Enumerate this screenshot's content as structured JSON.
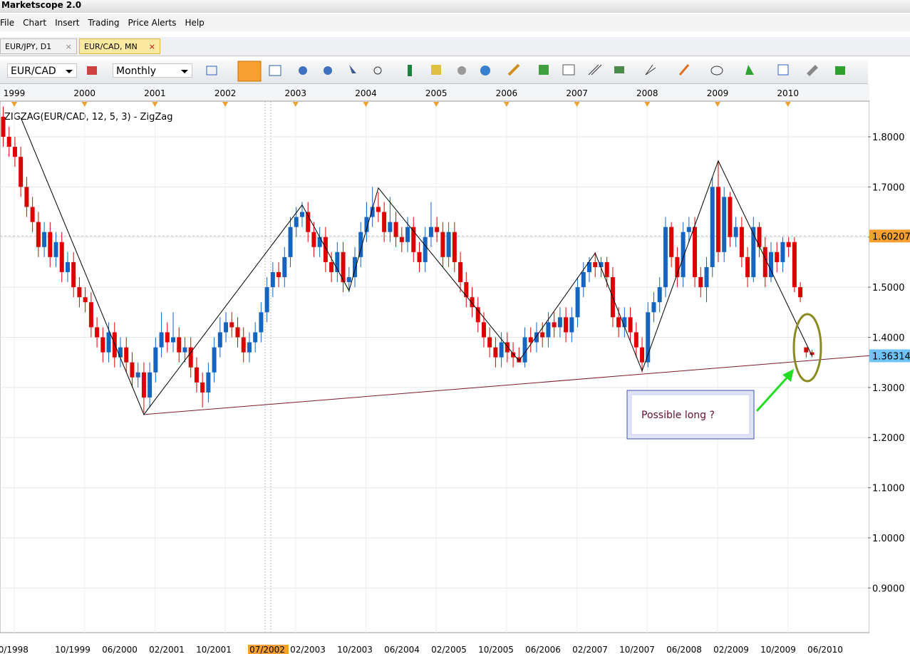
{
  "window": {
    "title": "Marketscope 2.0"
  },
  "menu": [
    "File",
    "Chart",
    "Insert",
    "Trading",
    "Price Alerts",
    "Help"
  ],
  "tabs": [
    "EUR/JPY, D1",
    "EUR/CAD, MN"
  ],
  "toolbar": {
    "symbol": "EUR/CAD",
    "period": "Monthly"
  },
  "chart_data": {
    "type": "candlestick",
    "indicator_label": "ZIGZAG(EUR/CAD, 12, 5, 3) - ZigZag",
    "up_color": "#1565c0",
    "down_color": "#dd0000",
    "ylim": [
      0.811,
      1.871
    ],
    "yticks": [
      {
        "value": 1.8,
        "label": "1.8000"
      },
      {
        "value": 1.7,
        "label": "1.7000"
      },
      {
        "value": 1.6,
        "label": "1.6000"
      },
      {
        "value": 1.5,
        "label": "1.5000"
      },
      {
        "value": 1.4,
        "label": "1.4000"
      },
      {
        "value": 1.3,
        "label": "1.3000"
      },
      {
        "value": 1.2,
        "label": "1.2000"
      },
      {
        "value": 1.1,
        "label": "1.1000"
      },
      {
        "value": 1.0,
        "label": "1.0000"
      },
      {
        "value": 0.9,
        "label": "0.9000"
      }
    ],
    "years": [
      "1999",
      "2000",
      "2001",
      "2002",
      "2003",
      "2004",
      "2005",
      "2006",
      "2007",
      "2008",
      "2009",
      "2010"
    ],
    "dates": [
      "10/1998",
      "10/1999",
      "06/2000",
      "02/2001",
      "10/2001",
      "07/2002",
      "02/2003",
      "10/2003",
      "06/2004",
      "02/2005",
      "10/2005",
      "06/2006",
      "02/2007",
      "10/2007",
      "06/2008",
      "02/2009",
      "10/2009",
      "06/2010"
    ],
    "grid": true,
    "candles": [
      [
        1.84,
        1.86,
        1.78,
        1.8
      ],
      [
        1.8,
        1.82,
        1.76,
        1.78
      ],
      [
        1.78,
        1.8,
        1.74,
        1.76
      ],
      [
        1.76,
        1.78,
        1.68,
        1.7
      ],
      [
        1.7,
        1.72,
        1.64,
        1.66
      ],
      [
        1.66,
        1.68,
        1.61,
        1.63
      ],
      [
        1.63,
        1.65,
        1.56,
        1.58
      ],
      [
        1.58,
        1.63,
        1.56,
        1.61
      ],
      [
        1.61,
        1.63,
        1.54,
        1.56
      ],
      [
        1.56,
        1.61,
        1.54,
        1.59
      ],
      [
        1.59,
        1.61,
        1.51,
        1.53
      ],
      [
        1.53,
        1.57,
        1.51,
        1.55
      ],
      [
        1.55,
        1.57,
        1.48,
        1.5
      ],
      [
        1.5,
        1.52,
        1.46,
        1.48
      ],
      [
        1.48,
        1.5,
        1.45,
        1.47
      ],
      [
        1.47,
        1.49,
        1.4,
        1.42
      ],
      [
        1.42,
        1.44,
        1.38,
        1.4
      ],
      [
        1.4,
        1.42,
        1.35,
        1.37
      ],
      [
        1.37,
        1.43,
        1.35,
        1.41
      ],
      [
        1.41,
        1.43,
        1.34,
        1.36
      ],
      [
        1.36,
        1.4,
        1.34,
        1.38
      ],
      [
        1.38,
        1.4,
        1.33,
        1.35
      ],
      [
        1.35,
        1.37,
        1.3,
        1.32
      ],
      [
        1.32,
        1.35,
        1.3,
        1.33
      ],
      [
        1.33,
        1.35,
        1.25,
        1.28
      ],
      [
        1.28,
        1.35,
        1.26,
        1.33
      ],
      [
        1.33,
        1.4,
        1.31,
        1.38
      ],
      [
        1.38,
        1.45,
        1.36,
        1.41
      ],
      [
        1.41,
        1.43,
        1.37,
        1.39
      ],
      [
        1.39,
        1.45,
        1.37,
        1.4
      ],
      [
        1.4,
        1.42,
        1.35,
        1.37
      ],
      [
        1.37,
        1.4,
        1.35,
        1.38
      ],
      [
        1.38,
        1.4,
        1.32,
        1.34
      ],
      [
        1.34,
        1.36,
        1.29,
        1.31
      ],
      [
        1.31,
        1.33,
        1.26,
        1.29
      ],
      [
        1.29,
        1.35,
        1.27,
        1.33
      ],
      [
        1.33,
        1.4,
        1.31,
        1.38
      ],
      [
        1.38,
        1.44,
        1.36,
        1.41
      ],
      [
        1.41,
        1.45,
        1.39,
        1.43
      ],
      [
        1.43,
        1.45,
        1.4,
        1.42
      ],
      [
        1.42,
        1.44,
        1.38,
        1.4
      ],
      [
        1.4,
        1.42,
        1.35,
        1.37
      ],
      [
        1.37,
        1.41,
        1.35,
        1.39
      ],
      [
        1.39,
        1.43,
        1.37,
        1.41
      ],
      [
        1.41,
        1.47,
        1.39,
        1.45
      ],
      [
        1.45,
        1.52,
        1.43,
        1.5
      ],
      [
        1.5,
        1.55,
        1.48,
        1.53
      ],
      [
        1.53,
        1.55,
        1.5,
        1.52
      ],
      [
        1.52,
        1.58,
        1.5,
        1.56
      ],
      [
        1.56,
        1.64,
        1.54,
        1.62
      ],
      [
        1.62,
        1.66,
        1.6,
        1.64
      ],
      [
        1.64,
        1.67,
        1.62,
        1.65
      ],
      [
        1.65,
        1.67,
        1.59,
        1.61
      ],
      [
        1.61,
        1.63,
        1.56,
        1.58
      ],
      [
        1.58,
        1.62,
        1.56,
        1.6
      ],
      [
        1.6,
        1.62,
        1.53,
        1.55
      ],
      [
        1.55,
        1.57,
        1.51,
        1.53
      ],
      [
        1.53,
        1.59,
        1.51,
        1.57
      ],
      [
        1.57,
        1.59,
        1.49,
        1.51
      ],
      [
        1.51,
        1.54,
        1.49,
        1.52
      ],
      [
        1.52,
        1.58,
        1.5,
        1.56
      ],
      [
        1.56,
        1.63,
        1.54,
        1.61
      ],
      [
        1.61,
        1.67,
        1.59,
        1.64
      ],
      [
        1.64,
        1.7,
        1.62,
        1.66
      ],
      [
        1.66,
        1.69,
        1.63,
        1.65
      ],
      [
        1.65,
        1.67,
        1.59,
        1.61
      ],
      [
        1.61,
        1.68,
        1.59,
        1.63
      ],
      [
        1.63,
        1.65,
        1.58,
        1.6
      ],
      [
        1.6,
        1.62,
        1.57,
        1.59
      ],
      [
        1.59,
        1.64,
        1.57,
        1.62
      ],
      [
        1.62,
        1.64,
        1.55,
        1.57
      ],
      [
        1.57,
        1.59,
        1.53,
        1.55
      ],
      [
        1.55,
        1.62,
        1.53,
        1.6
      ],
      [
        1.6,
        1.67,
        1.58,
        1.62
      ],
      [
        1.62,
        1.64,
        1.59,
        1.61
      ],
      [
        1.61,
        1.63,
        1.54,
        1.56
      ],
      [
        1.56,
        1.63,
        1.54,
        1.61
      ],
      [
        1.61,
        1.63,
        1.53,
        1.55
      ],
      [
        1.55,
        1.57,
        1.49,
        1.51
      ],
      [
        1.51,
        1.53,
        1.46,
        1.48
      ],
      [
        1.48,
        1.5,
        1.44,
        1.46
      ],
      [
        1.46,
        1.48,
        1.41,
        1.43
      ],
      [
        1.43,
        1.45,
        1.38,
        1.4
      ],
      [
        1.4,
        1.42,
        1.36,
        1.38
      ],
      [
        1.38,
        1.4,
        1.34,
        1.36
      ],
      [
        1.36,
        1.41,
        1.34,
        1.39
      ],
      [
        1.39,
        1.41,
        1.35,
        1.37
      ],
      [
        1.37,
        1.39,
        1.34,
        1.36
      ],
      [
        1.36,
        1.38,
        1.35,
        1.35
      ],
      [
        1.35,
        1.42,
        1.34,
        1.4
      ],
      [
        1.4,
        1.42,
        1.37,
        1.39
      ],
      [
        1.39,
        1.43,
        1.37,
        1.41
      ],
      [
        1.41,
        1.43,
        1.38,
        1.4
      ],
      [
        1.4,
        1.45,
        1.38,
        1.43
      ],
      [
        1.43,
        1.45,
        1.4,
        1.42
      ],
      [
        1.42,
        1.46,
        1.4,
        1.44
      ],
      [
        1.44,
        1.46,
        1.39,
        1.41
      ],
      [
        1.41,
        1.46,
        1.39,
        1.44
      ],
      [
        1.44,
        1.52,
        1.42,
        1.5
      ],
      [
        1.5,
        1.55,
        1.48,
        1.53
      ],
      [
        1.53,
        1.56,
        1.51,
        1.55
      ],
      [
        1.55,
        1.57,
        1.52,
        1.54
      ],
      [
        1.54,
        1.56,
        1.52,
        1.55
      ],
      [
        1.55,
        1.56,
        1.5,
        1.52
      ],
      [
        1.52,
        1.54,
        1.42,
        1.44
      ],
      [
        1.44,
        1.46,
        1.4,
        1.42
      ],
      [
        1.42,
        1.46,
        1.4,
        1.44
      ],
      [
        1.44,
        1.46,
        1.39,
        1.41
      ],
      [
        1.41,
        1.43,
        1.36,
        1.38
      ],
      [
        1.38,
        1.4,
        1.33,
        1.35
      ],
      [
        1.35,
        1.47,
        1.34,
        1.45
      ],
      [
        1.45,
        1.49,
        1.43,
        1.47
      ],
      [
        1.47,
        1.52,
        1.45,
        1.5
      ],
      [
        1.5,
        1.64,
        1.48,
        1.62
      ],
      [
        1.62,
        1.63,
        1.54,
        1.56
      ],
      [
        1.56,
        1.58,
        1.5,
        1.52
      ],
      [
        1.52,
        1.63,
        1.5,
        1.61
      ],
      [
        1.61,
        1.64,
        1.59,
        1.62
      ],
      [
        1.62,
        1.64,
        1.5,
        1.52
      ],
      [
        1.52,
        1.54,
        1.48,
        1.5
      ],
      [
        1.5,
        1.56,
        1.47,
        1.54
      ],
      [
        1.54,
        1.72,
        1.52,
        1.7
      ],
      [
        1.7,
        1.75,
        1.55,
        1.57
      ],
      [
        1.57,
        1.7,
        1.55,
        1.68
      ],
      [
        1.68,
        1.69,
        1.58,
        1.6
      ],
      [
        1.6,
        1.64,
        1.58,
        1.62
      ],
      [
        1.62,
        1.64,
        1.54,
        1.56
      ],
      [
        1.56,
        1.58,
        1.5,
        1.52
      ],
      [
        1.52,
        1.64,
        1.51,
        1.62
      ],
      [
        1.62,
        1.63,
        1.56,
        1.58
      ],
      [
        1.58,
        1.6,
        1.5,
        1.52
      ],
      [
        1.52,
        1.59,
        1.51,
        1.57
      ],
      [
        1.57,
        1.59,
        1.53,
        1.55
      ],
      [
        1.55,
        1.6,
        1.53,
        1.59
      ],
      [
        1.59,
        1.6,
        1.56,
        1.58
      ],
      [
        1.59,
        1.6,
        1.49,
        1.5
      ],
      [
        1.5,
        1.51,
        1.47,
        1.48
      ],
      [
        1.38,
        1.38,
        1.36,
        1.37
      ],
      [
        1.37,
        1.375,
        1.36,
        1.365
      ]
    ],
    "zigzag": {
      "x": [
        3,
        24,
        51,
        59,
        64,
        88,
        101,
        109,
        122,
        138
      ],
      "y": [
        1.838,
        1.246,
        1.664,
        1.493,
        1.698,
        1.353,
        1.568,
        1.333,
        1.752,
        1.363
      ]
    },
    "trendline": [
      1.246,
      1.37
    ],
    "price_labels": [
      1.60207,
      1.36314
    ],
    "annotation": "Possible long ?"
  }
}
